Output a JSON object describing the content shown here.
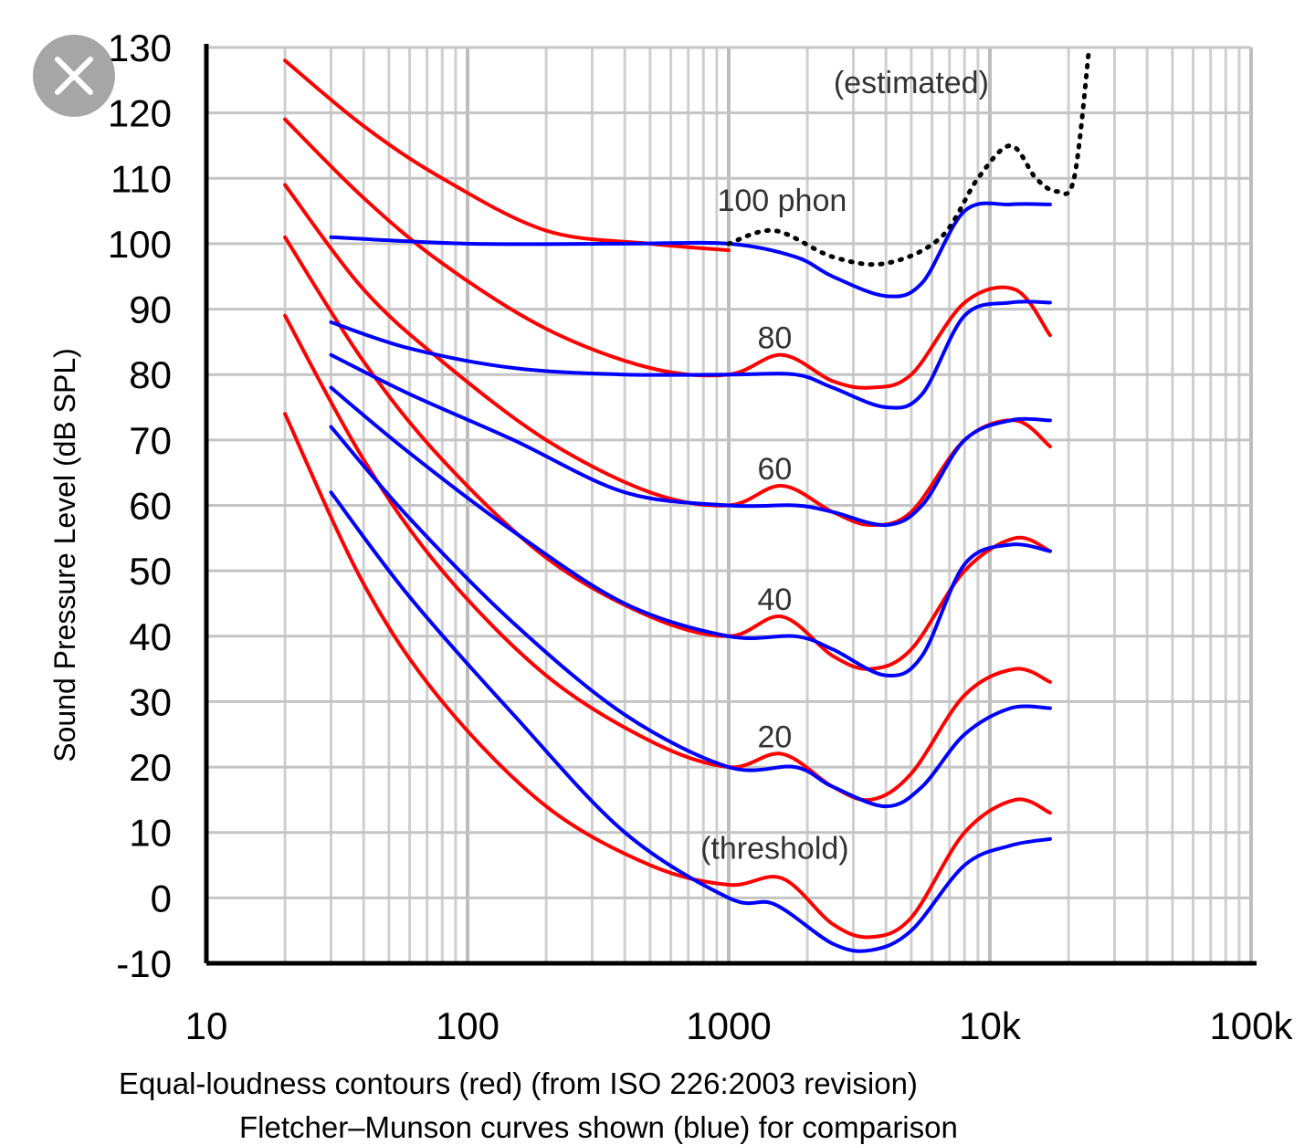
{
  "chart_data": {
    "type": "line",
    "x_scale": "log",
    "xlim": [
      10,
      100000
    ],
    "ylim": [
      -10,
      130
    ],
    "x_tick_values": [
      10,
      100,
      1000,
      10000,
      100000
    ],
    "x_tick_labels": [
      "10",
      "100",
      "1000",
      "10k",
      "100k"
    ],
    "y_tick_values": [
      130,
      120,
      110,
      100,
      90,
      80,
      70,
      60,
      50,
      40,
      30,
      20,
      10,
      0,
      -10
    ],
    "y_tick_labels": [
      "130",
      "120",
      "110",
      "100",
      "90",
      "80",
      "70",
      "60",
      "50",
      "40",
      "30",
      "20",
      "10",
      "0",
      "-10"
    ],
    "ylabel": "Sound Pressure Level (dB SPL)",
    "caption_lines": [
      "Equal-loudness contours (red) (from ISO 226:2003 revision)",
      "Fletcher–Munson curves shown (blue) for comparison"
    ],
    "annotations": [
      {
        "text": "(estimated)",
        "x": 5000,
        "y": 123
      },
      {
        "text": "100 phon",
        "x": 1600,
        "y": 105
      },
      {
        "text": "80",
        "x": 1500,
        "y": 84
      },
      {
        "text": "60",
        "x": 1500,
        "y": 64
      },
      {
        "text": "40",
        "x": 1500,
        "y": 44
      },
      {
        "text": "20",
        "x": 1500,
        "y": 23
      },
      {
        "text": "(threshold)",
        "x": 1500,
        "y": 6
      }
    ],
    "series": [
      {
        "name": "ISO 226 100 phon",
        "color": "#ff0000",
        "points": [
          [
            20,
            128
          ],
          [
            40,
            118
          ],
          [
            80,
            110
          ],
          [
            200,
            102
          ],
          [
            500,
            100
          ],
          [
            1000,
            99
          ]
        ]
      },
      {
        "name": "ISO 226 80 phon",
        "color": "#ff0000",
        "points": [
          [
            20,
            119
          ],
          [
            40,
            107
          ],
          [
            80,
            97
          ],
          [
            200,
            87
          ],
          [
            500,
            81
          ],
          [
            1000,
            80
          ],
          [
            1600,
            83
          ],
          [
            2500,
            79
          ],
          [
            3500,
            78
          ],
          [
            5000,
            80
          ],
          [
            8000,
            91
          ],
          [
            12500,
            93
          ],
          [
            17000,
            86
          ]
        ]
      },
      {
        "name": "ISO 226 60 phon",
        "color": "#ff0000",
        "points": [
          [
            20,
            109
          ],
          [
            40,
            93
          ],
          [
            80,
            82
          ],
          [
            200,
            70
          ],
          [
            500,
            62
          ],
          [
            1000,
            60
          ],
          [
            1600,
            63
          ],
          [
            2500,
            59
          ],
          [
            3500,
            57
          ],
          [
            5000,
            59
          ],
          [
            8000,
            70
          ],
          [
            12500,
            73
          ],
          [
            17000,
            69
          ]
        ]
      },
      {
        "name": "ISO 226 40 phon",
        "color": "#ff0000",
        "points": [
          [
            20,
            101
          ],
          [
            40,
            82
          ],
          [
            80,
            67
          ],
          [
            200,
            52
          ],
          [
            500,
            43
          ],
          [
            1000,
            40
          ],
          [
            1600,
            43
          ],
          [
            2500,
            37
          ],
          [
            3500,
            35
          ],
          [
            5000,
            38
          ],
          [
            8000,
            50
          ],
          [
            12500,
            55
          ],
          [
            17000,
            53
          ]
        ]
      },
      {
        "name": "ISO 226 20 phon",
        "color": "#ff0000",
        "points": [
          [
            20,
            89
          ],
          [
            40,
            67
          ],
          [
            80,
            50
          ],
          [
            200,
            34
          ],
          [
            500,
            24
          ],
          [
            1000,
            20
          ],
          [
            1600,
            22
          ],
          [
            2500,
            17
          ],
          [
            3500,
            15
          ],
          [
            5000,
            19
          ],
          [
            8000,
            31
          ],
          [
            12500,
            35
          ],
          [
            17000,
            33
          ]
        ]
      },
      {
        "name": "ISO 226 threshold",
        "color": "#ff0000",
        "points": [
          [
            20,
            74
          ],
          [
            40,
            48
          ],
          [
            80,
            30
          ],
          [
            200,
            14
          ],
          [
            500,
            5
          ],
          [
            1000,
            2
          ],
          [
            1600,
            3
          ],
          [
            2500,
            -4
          ],
          [
            3500,
            -6
          ],
          [
            5000,
            -3
          ],
          [
            8000,
            10
          ],
          [
            12500,
            15
          ],
          [
            17000,
            13
          ]
        ]
      },
      {
        "name": "Fletcher-Munson 100 phon",
        "color": "#0000ff",
        "points": [
          [
            30,
            101
          ],
          [
            100,
            100
          ],
          [
            400,
            100
          ],
          [
            1000,
            100
          ],
          [
            1800,
            98
          ],
          [
            2500,
            95
          ],
          [
            4000,
            92
          ],
          [
            5500,
            94
          ],
          [
            8000,
            105
          ],
          [
            12000,
            106
          ],
          [
            17000,
            106
          ]
        ]
      },
      {
        "name": "Fletcher-Munson 80 phon",
        "color": "#0000ff",
        "points": [
          [
            30,
            88
          ],
          [
            60,
            84
          ],
          [
            150,
            81
          ],
          [
            400,
            80
          ],
          [
            1000,
            80
          ],
          [
            1800,
            80
          ],
          [
            2500,
            78
          ],
          [
            4000,
            75
          ],
          [
            5500,
            77
          ],
          [
            8000,
            89
          ],
          [
            12000,
            91
          ],
          [
            17000,
            91
          ]
        ]
      },
      {
        "name": "Fletcher-Munson 60 phon",
        "color": "#0000ff",
        "points": [
          [
            30,
            83
          ],
          [
            60,
            77
          ],
          [
            150,
            70
          ],
          [
            400,
            62
          ],
          [
            1000,
            60
          ],
          [
            1800,
            60
          ],
          [
            2500,
            59
          ],
          [
            4000,
            57
          ],
          [
            5500,
            60
          ],
          [
            8000,
            70
          ],
          [
            12000,
            73
          ],
          [
            17000,
            73
          ]
        ]
      },
      {
        "name": "Fletcher-Munson 40 phon",
        "color": "#0000ff",
        "points": [
          [
            30,
            78
          ],
          [
            60,
            68
          ],
          [
            150,
            56
          ],
          [
            400,
            45
          ],
          [
            1000,
            40
          ],
          [
            1800,
            40
          ],
          [
            2500,
            38
          ],
          [
            4000,
            34
          ],
          [
            5500,
            37
          ],
          [
            8000,
            51
          ],
          [
            12000,
            54
          ],
          [
            17000,
            53
          ]
        ]
      },
      {
        "name": "Fletcher-Munson 20 phon",
        "color": "#0000ff",
        "points": [
          [
            30,
            72
          ],
          [
            60,
            58
          ],
          [
            150,
            42
          ],
          [
            400,
            28
          ],
          [
            1000,
            20
          ],
          [
            1800,
            20
          ],
          [
            2500,
            17
          ],
          [
            4000,
            14
          ],
          [
            5500,
            17
          ],
          [
            8000,
            25
          ],
          [
            12000,
            29
          ],
          [
            17000,
            29
          ]
        ]
      },
      {
        "name": "Fletcher-Munson threshold",
        "color": "#0000ff",
        "points": [
          [
            30,
            62
          ],
          [
            60,
            46
          ],
          [
            150,
            28
          ],
          [
            400,
            10
          ],
          [
            1000,
            0
          ],
          [
            1500,
            -1
          ],
          [
            2500,
            -7
          ],
          [
            3500,
            -8
          ],
          [
            5000,
            -5
          ],
          [
            8000,
            5
          ],
          [
            12000,
            8
          ],
          [
            17000,
            9
          ]
        ]
      },
      {
        "name": "Estimated high-frequency extension",
        "color": "#000000",
        "style": "dotted",
        "points": [
          [
            1000,
            100
          ],
          [
            1500,
            102
          ],
          [
            2500,
            98
          ],
          [
            4000,
            97
          ],
          [
            6500,
            101
          ],
          [
            9000,
            110
          ],
          [
            12000,
            115
          ],
          [
            15000,
            110
          ],
          [
            18000,
            108
          ],
          [
            21000,
            110
          ],
          [
            24000,
            130
          ]
        ]
      }
    ]
  },
  "close_button": {
    "icon": "close-icon"
  }
}
